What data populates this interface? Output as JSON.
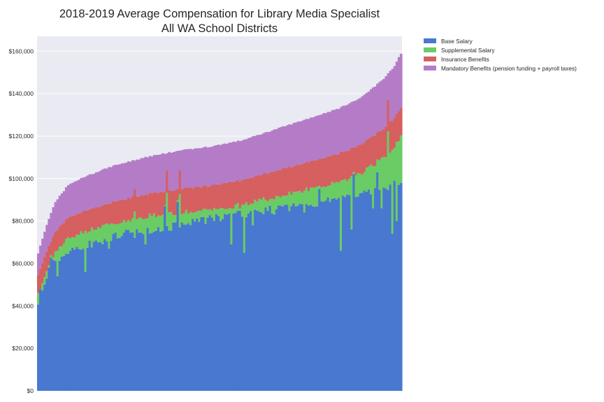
{
  "chart_data": {
    "type": "bar",
    "stacked": true,
    "title": "2018-2019 Average Compensation for Library Media Specialist",
    "subtitle": "All WA School Districts",
    "xlabel": "",
    "ylabel": "",
    "ylim": [
      0,
      167000
    ],
    "yticks": [
      0,
      20000,
      40000,
      60000,
      80000,
      100000,
      120000,
      140000,
      160000
    ],
    "ytick_labels": [
      "$0",
      "$20,000",
      "$40,000",
      "$60,000",
      "$80,000",
      "$100,000",
      "$120,000",
      "$140,000",
      "$160,000"
    ],
    "grid": true,
    "legend_position": "outside-top-right",
    "background": "#eaeaf2",
    "num_districts": 170,
    "totals_anchor": [
      [
        0,
        65000
      ],
      [
        4,
        78000
      ],
      [
        8,
        89000
      ],
      [
        14,
        97000
      ],
      [
        22,
        101000
      ],
      [
        35,
        106000
      ],
      [
        50,
        110000
      ],
      [
        65,
        113000
      ],
      [
        80,
        115000
      ],
      [
        95,
        118000
      ],
      [
        110,
        123000
      ],
      [
        125,
        128000
      ],
      [
        140,
        133000
      ],
      [
        150,
        138000
      ],
      [
        160,
        146000
      ],
      [
        166,
        153000
      ],
      [
        169,
        159000
      ]
    ],
    "base_anchor": [
      [
        0,
        39000
      ],
      [
        3,
        51000
      ],
      [
        6,
        62000
      ],
      [
        10,
        63000
      ],
      [
        20,
        68000
      ],
      [
        30,
        71000
      ],
      [
        45,
        75000
      ],
      [
        60,
        77000
      ],
      [
        80,
        81000
      ],
      [
        100,
        84000
      ],
      [
        120,
        87000
      ],
      [
        140,
        90000
      ],
      [
        160,
        95000
      ],
      [
        169,
        98000
      ]
    ],
    "base_dips": [
      [
        1,
        48000
      ],
      [
        5,
        58000
      ],
      [
        9,
        54000
      ],
      [
        22,
        56000
      ],
      [
        29,
        70000
      ],
      [
        33,
        67000
      ],
      [
        45,
        72000
      ],
      [
        50,
        69000
      ],
      [
        66,
        77000
      ],
      [
        70,
        79000
      ],
      [
        82,
        80000
      ],
      [
        90,
        69000
      ],
      [
        96,
        65000
      ],
      [
        100,
        78000
      ],
      [
        110,
        83000
      ],
      [
        124,
        84000
      ],
      [
        136,
        89000
      ],
      [
        141,
        66000
      ],
      [
        146,
        76000
      ],
      [
        156,
        86000
      ],
      [
        160,
        86000
      ],
      [
        165,
        74000
      ],
      [
        167,
        80000
      ]
    ],
    "base_spikes": [
      [
        59,
        87000
      ],
      [
        65,
        89000
      ],
      [
        131,
        95000
      ],
      [
        147,
        102000
      ],
      [
        158,
        103000
      ]
    ],
    "insurance_spikes": [
      [
        45,
        95000
      ],
      [
        60,
        104000
      ],
      [
        66,
        104000
      ],
      [
        163,
        137000
      ]
    ],
    "series": [
      {
        "name": "Base Salary",
        "color": "#4878cf"
      },
      {
        "name": "Supplemental Salary",
        "color": "#6acc65"
      },
      {
        "name": "Insurance Benefits",
        "color": "#d65f5f"
      },
      {
        "name": "Mandatory Benefits (pension funding + payroll taxes)",
        "color": "#b47cc7"
      }
    ]
  }
}
